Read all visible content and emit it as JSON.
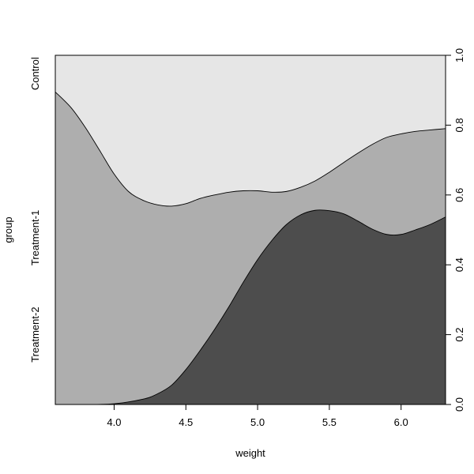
{
  "chart_data": {
    "type": "area",
    "subtype": "conditional-density (spinogram-style stacked proportions)",
    "title": "",
    "xlabel": "weight",
    "ylabel": "group",
    "x_range": [
      3.59,
      6.31
    ],
    "y_range": [
      0,
      1
    ],
    "x_ticks": [
      "4.0",
      "4.5",
      "5.0",
      "5.5",
      "6.0"
    ],
    "x_tick_values": [
      4.0,
      4.5,
      5.0,
      5.5,
      6.0
    ],
    "y_ticks_right": [
      "0.0",
      "0.2",
      "0.4",
      "0.6",
      "0.8",
      "1.0"
    ],
    "y_tick_values": [
      0.0,
      0.2,
      0.4,
      0.6,
      0.8,
      1.0
    ],
    "grid": false,
    "categories": [
      "Treatment-2",
      "Treatment-1",
      "Control"
    ],
    "category_labels_left": [
      "Control",
      "Treatment-1",
      "Treatment-2"
    ],
    "colors": {
      "Treatment-2": "#4d4d4d",
      "Treatment-1": "#aeaeae",
      "Control": "#e6e6e6"
    },
    "boundaries": [
      {
        "upper_of": "Treatment-2",
        "x": [
          3.59,
          3.8,
          4.0,
          4.2,
          4.3,
          4.4,
          4.5,
          4.6,
          4.7,
          4.8,
          4.9,
          5.0,
          5.1,
          5.2,
          5.3,
          5.4,
          5.5,
          5.6,
          5.7,
          5.8,
          5.9,
          6.0,
          6.1,
          6.2,
          6.31
        ],
        "y": [
          0.0,
          0.0,
          0.002,
          0.015,
          0.03,
          0.055,
          0.1,
          0.155,
          0.215,
          0.28,
          0.35,
          0.415,
          0.47,
          0.515,
          0.543,
          0.556,
          0.555,
          0.546,
          0.525,
          0.502,
          0.487,
          0.487,
          0.5,
          0.515,
          0.537
        ]
      },
      {
        "upper_of": "Treatment-1",
        "x": [
          3.59,
          3.7,
          3.8,
          3.9,
          4.0,
          4.1,
          4.2,
          4.3,
          4.4,
          4.5,
          4.6,
          4.7,
          4.8,
          4.9,
          5.0,
          5.1,
          5.2,
          5.3,
          5.4,
          5.5,
          5.6,
          5.7,
          5.8,
          5.9,
          6.0,
          6.1,
          6.2,
          6.31
        ],
        "y": [
          0.895,
          0.85,
          0.793,
          0.727,
          0.66,
          0.61,
          0.585,
          0.572,
          0.568,
          0.575,
          0.59,
          0.6,
          0.608,
          0.612,
          0.612,
          0.608,
          0.61,
          0.622,
          0.64,
          0.665,
          0.693,
          0.72,
          0.745,
          0.765,
          0.775,
          0.782,
          0.786,
          0.79
        ]
      }
    ]
  }
}
